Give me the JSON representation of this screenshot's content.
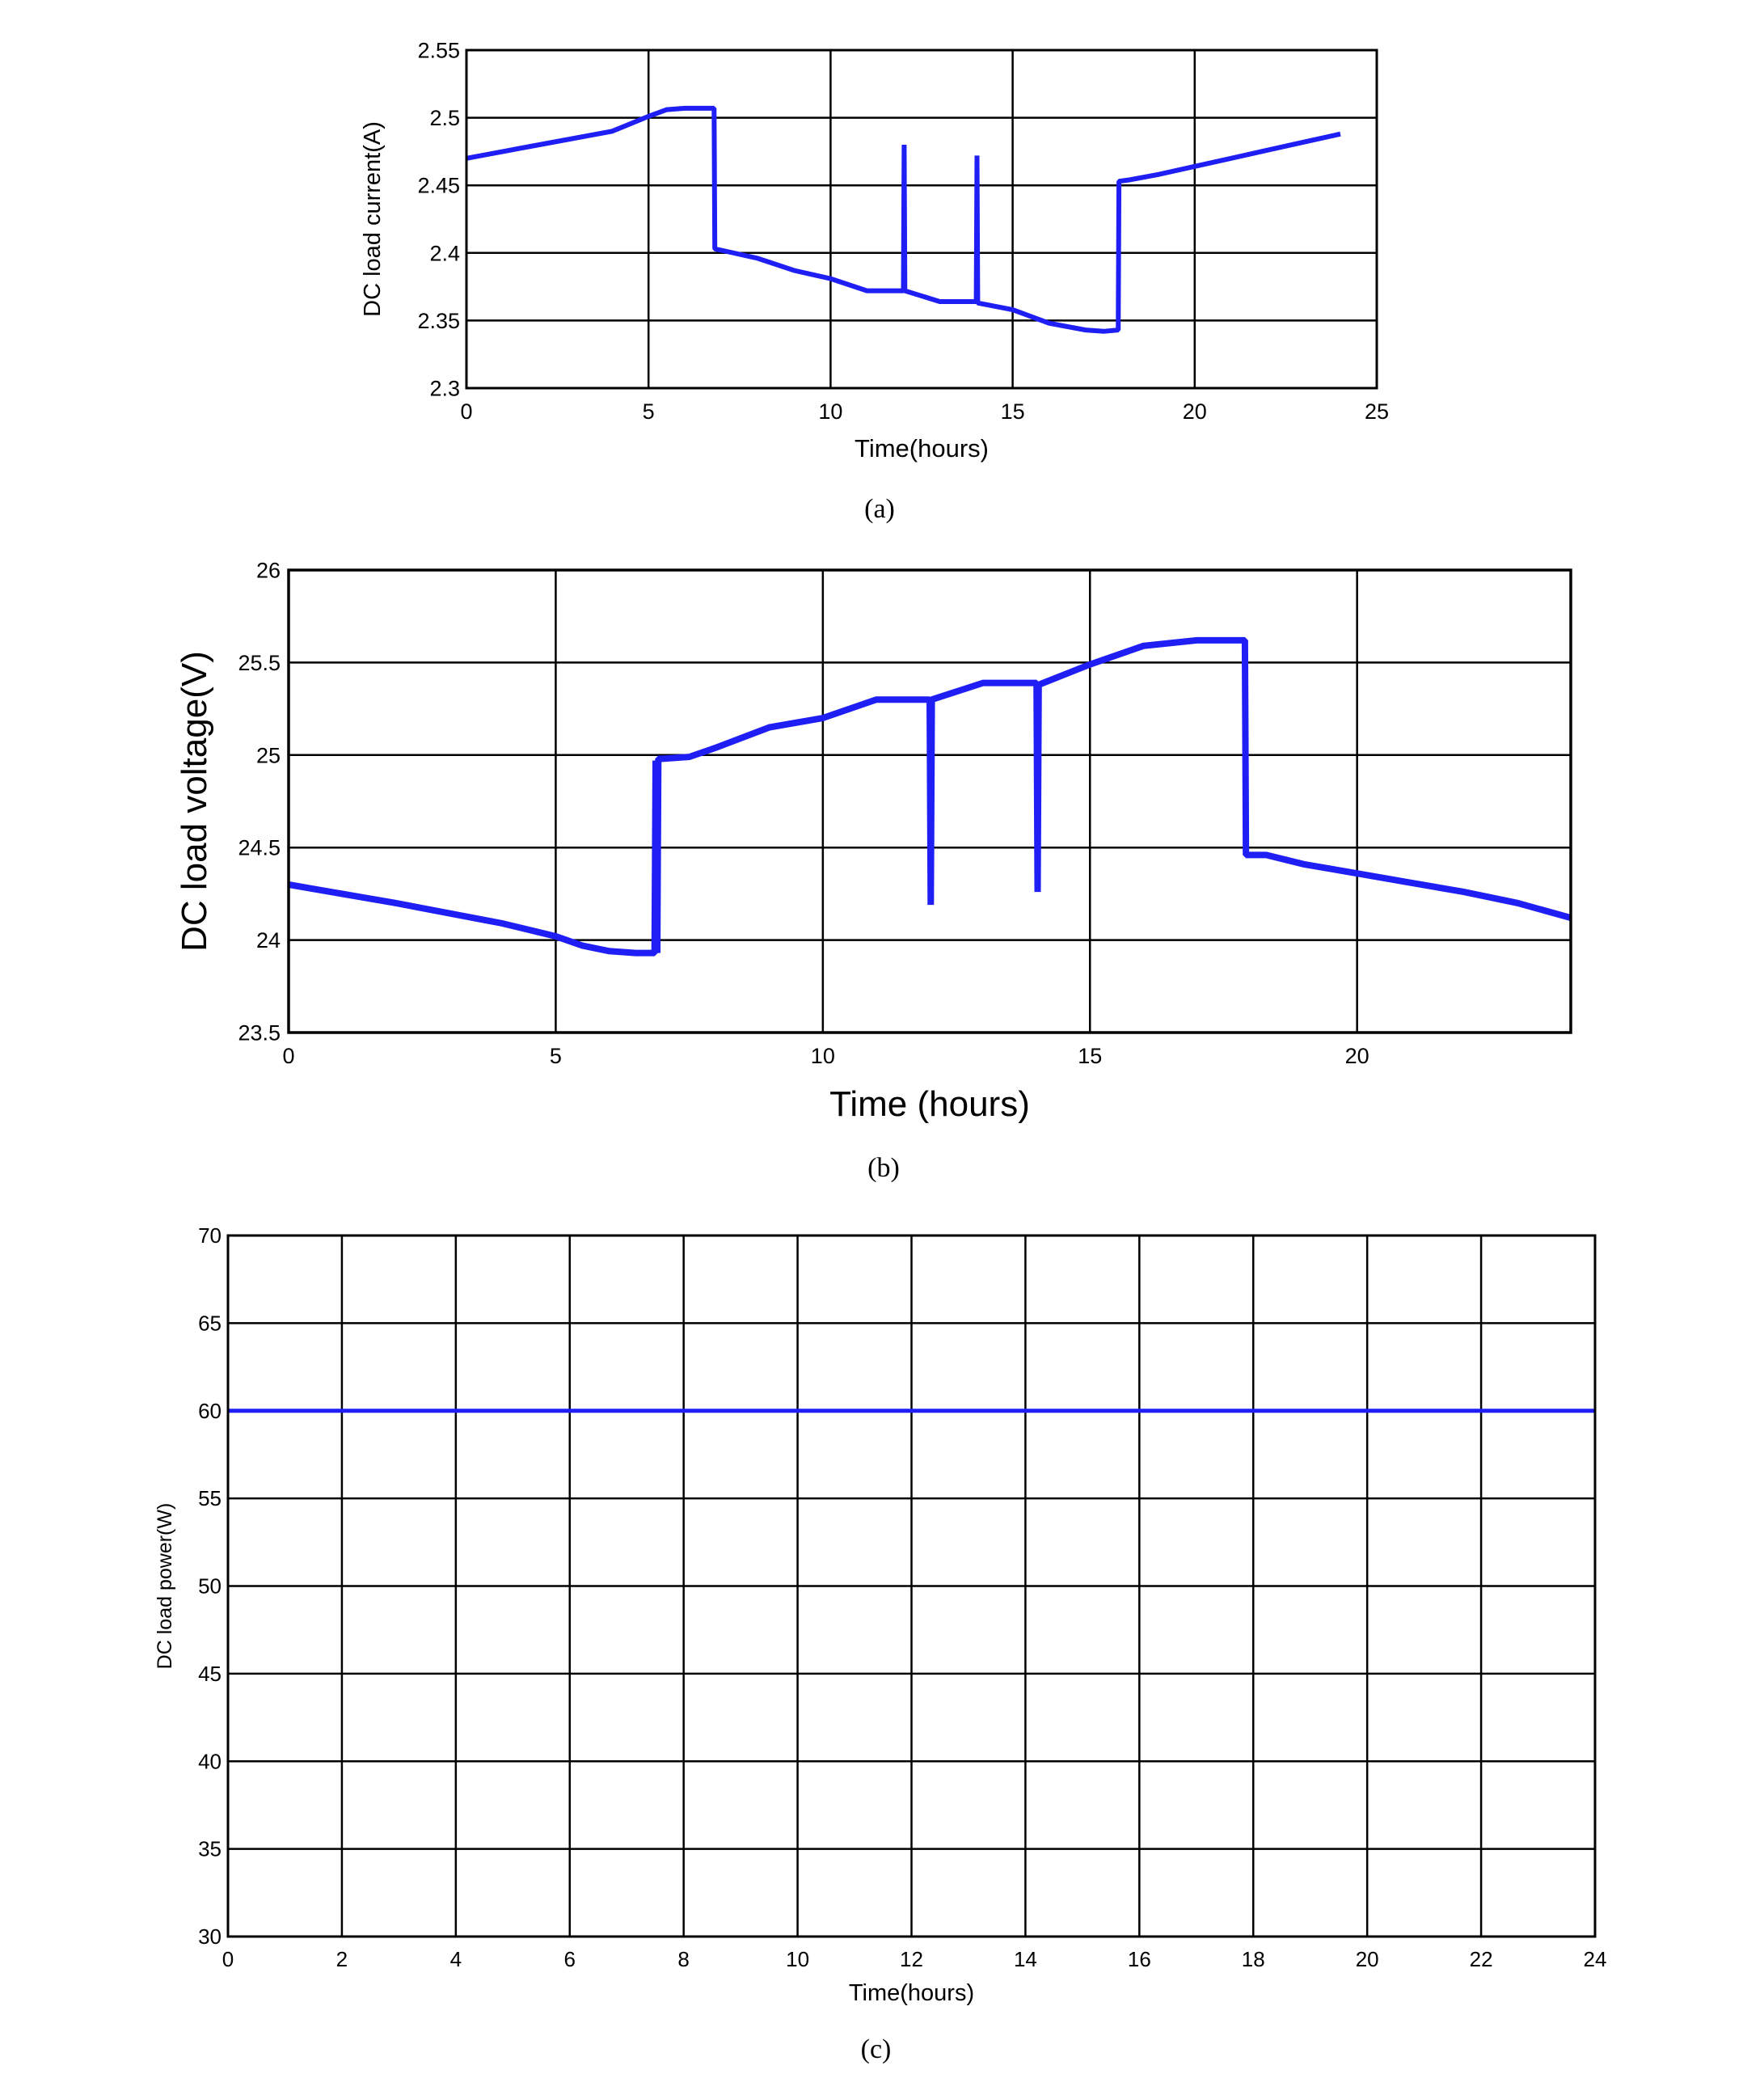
{
  "chart_data": [
    {
      "type": "line",
      "caption": "(a)",
      "xlabel": "Time(hours)",
      "ylabel": "DC load current(A)",
      "xlim": [
        0,
        25
      ],
      "ylim": [
        2.3,
        2.55
      ],
      "xticks": [
        0,
        5,
        10,
        15,
        20,
        25
      ],
      "yticks": [
        2.3,
        2.35,
        2.4,
        2.45,
        2.5,
        2.55
      ],
      "ytick_labels": [
        "2.3",
        "2.35",
        "2.4",
        "2.45",
        "2.5",
        "2.55"
      ],
      "grid": true,
      "color": "#1f1ff5",
      "series": [
        {
          "x": [
            0,
            2,
            4,
            5,
            5.5,
            6,
            6.5,
            6.8,
            6.82,
            7,
            8,
            9,
            10,
            11,
            12,
            12.02,
            12.04,
            13,
            14,
            14.02,
            14.04,
            15,
            16,
            17,
            17.5,
            17.9,
            17.92,
            18.2,
            19,
            20,
            21,
            22,
            23,
            24
          ],
          "y": [
            2.47,
            2.48,
            2.49,
            2.501,
            2.506,
            2.507,
            2.507,
            2.507,
            2.403,
            2.402,
            2.396,
            2.387,
            2.381,
            2.372,
            2.372,
            2.48,
            2.372,
            2.364,
            2.364,
            2.472,
            2.363,
            2.358,
            2.348,
            2.343,
            2.342,
            2.343,
            2.453,
            2.454,
            2.458,
            2.464,
            2.47,
            2.476,
            2.482,
            2.488
          ]
        }
      ]
    },
    {
      "type": "line",
      "caption": "(b)",
      "xlabel": "Time (hours)",
      "ylabel": "DC load voltage(V)",
      "xlim": [
        0,
        24
      ],
      "ylim": [
        23.5,
        26
      ],
      "xticks": [
        0,
        5,
        10,
        15,
        20
      ],
      "yticks": [
        23.5,
        24,
        24.5,
        25,
        25.5,
        26
      ],
      "ytick_labels": [
        "23.5",
        "24",
        "24.5",
        "25",
        "25.5",
        "26"
      ],
      "grid": true,
      "color": "#1f1ff5",
      "series": [
        {
          "x": [
            0,
            2,
            4,
            5,
            5.5,
            6,
            6.5,
            6.85,
            6.87,
            6.9,
            6.92,
            7.0,
            7.5,
            8,
            9,
            10,
            11,
            12,
            12.02,
            12.04,
            13,
            14,
            14.02,
            14.04,
            15,
            16,
            17,
            17.5,
            17.9,
            17.92,
            18.3,
            19,
            20,
            21,
            22,
            23,
            24
          ],
          "y": [
            24.3,
            24.2,
            24.09,
            24.02,
            23.97,
            23.94,
            23.93,
            23.93,
            24.97,
            23.93,
            24.98,
            24.98,
            24.99,
            25.04,
            25.15,
            25.2,
            25.3,
            25.3,
            24.19,
            25.3,
            25.39,
            25.39,
            24.26,
            25.38,
            25.49,
            25.59,
            25.62,
            25.62,
            25.62,
            24.46,
            24.46,
            24.41,
            24.36,
            24.31,
            24.26,
            24.2,
            24.12
          ]
        }
      ]
    },
    {
      "type": "line",
      "caption": "(c)",
      "xlabel": "Time(hours)",
      "ylabel": "DC load power(W)",
      "xlim": [
        0,
        24
      ],
      "ylim": [
        30,
        70
      ],
      "xticks": [
        0,
        2,
        4,
        6,
        8,
        10,
        12,
        14,
        16,
        18,
        20,
        22,
        24
      ],
      "yticks": [
        30,
        35,
        40,
        45,
        50,
        55,
        60,
        65,
        70
      ],
      "ytick_labels": [
        "30",
        "35",
        "40",
        "45",
        "50",
        "55",
        "60",
        "65",
        "70"
      ],
      "grid": true,
      "color": "#1f1ff5",
      "series": [
        {
          "x": [
            0,
            24
          ],
          "y": [
            60,
            60
          ]
        }
      ]
    }
  ]
}
